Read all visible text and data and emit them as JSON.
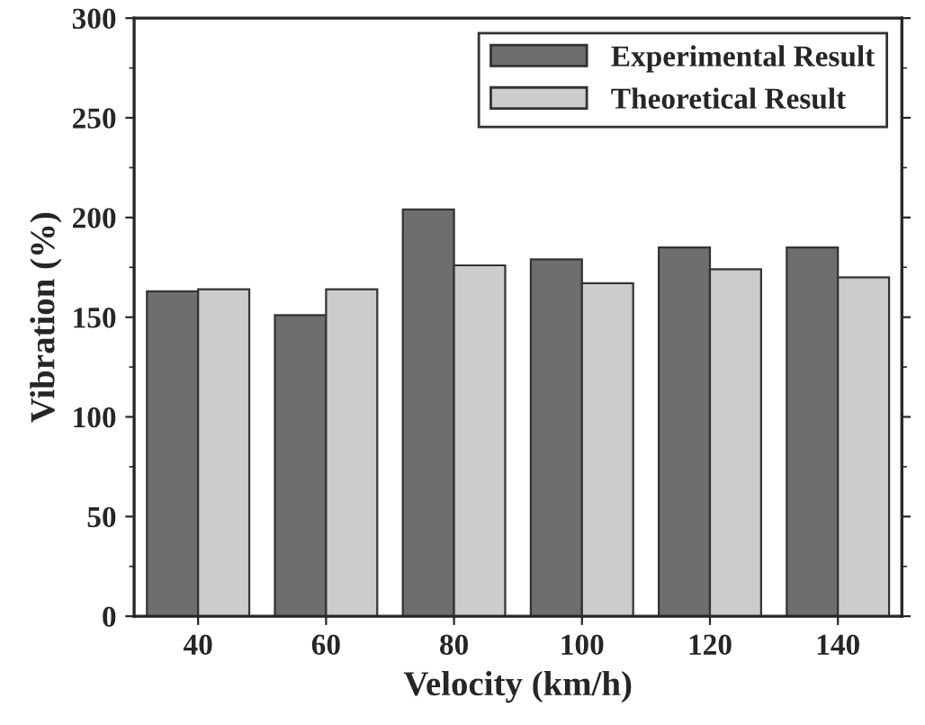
{
  "chart_data": {
    "type": "bar",
    "xlabel": "Velocity (km/h)",
    "ylabel": "Vibration (%)",
    "categories": [
      "40",
      "60",
      "80",
      "100",
      "120",
      "140"
    ],
    "series": [
      {
        "name": "Experimental Result",
        "color": "#6e6e6e",
        "values": [
          163,
          151,
          204,
          179,
          185,
          185
        ]
      },
      {
        "name": "Theoretical Result",
        "color": "#cccccc",
        "values": [
          164,
          164,
          176,
          167,
          174,
          170
        ]
      }
    ],
    "ylim": [
      0,
      300
    ],
    "yticks": [
      0,
      50,
      100,
      150,
      200,
      250,
      300
    ],
    "legend": "top right",
    "grid": false
  }
}
